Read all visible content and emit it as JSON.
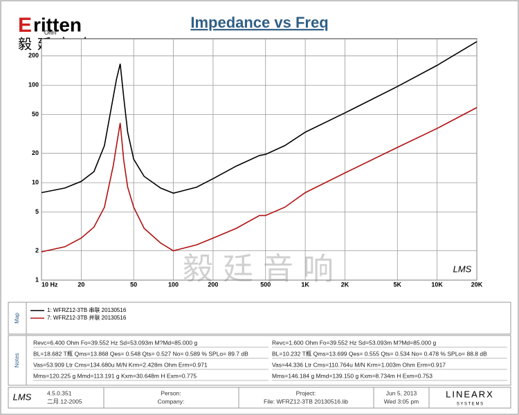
{
  "header": {
    "logo_letter": "E",
    "logo_rest": "ritten",
    "logo_cn": "毅廷音响",
    "watermark": "毅廷音响",
    "lms_logo": "LMS"
  },
  "chart_data": {
    "type": "line",
    "title": "Impedance vs Freq",
    "y_unit": "Ohm",
    "x": [
      10,
      15,
      20,
      25,
      30,
      35,
      37,
      39.5,
      42,
      45,
      50,
      60,
      80,
      100,
      150,
      200,
      300,
      450,
      500,
      700,
      1000,
      2000,
      5000,
      10000,
      20000
    ],
    "series": [
      {
        "name": "1: WFRZ12-3TB 串联 20130516",
        "color": "#000000",
        "values": [
          7.9,
          8.8,
          10.3,
          13,
          24,
          76,
          115,
          166,
          75,
          33,
          17.4,
          11.6,
          8.8,
          7.8,
          9,
          11,
          14.8,
          19,
          19.5,
          24,
          33,
          52,
          97,
          160,
          280
        ]
      },
      {
        "name": "7: WFRZ12-3TB 并联 20130516",
        "color": "#b01010",
        "values": [
          1.95,
          2.2,
          2.7,
          3.5,
          5.6,
          15,
          24,
          41,
          17,
          9,
          5.6,
          3.4,
          2.4,
          2.0,
          2.3,
          2.7,
          3.4,
          4.6,
          4.6,
          5.6,
          7.9,
          12.6,
          23,
          36,
          59
        ]
      }
    ],
    "xscale": "log",
    "yscale": "log",
    "xlim": [
      10,
      20000
    ],
    "ylim": [
      1,
      300
    ],
    "xticks": [
      {
        "value": 10,
        "label": "10 Hz"
      },
      20,
      50,
      100,
      200,
      500,
      {
        "value": 1000,
        "label": "1K"
      },
      {
        "value": 2000,
        "label": "2K"
      },
      {
        "value": 5000,
        "label": "5K"
      },
      {
        "value": 10000,
        "label": "10K"
      },
      {
        "value": 20000,
        "label": "20K"
      }
    ],
    "yticks": [
      1,
      2,
      5,
      10,
      20,
      50,
      100,
      200
    ],
    "grid": true
  },
  "panels": {
    "map": "Map",
    "notes": "Notes"
  },
  "notes": {
    "left": [
      "Revc=6.400 Ohm  Fo=39.552 Hz  Sd=53.093m M?Md=85.000 g",
      "BL=18.682 T瓶  Qms=13.868  Qes= 0.548  Qts= 0.527  No= 0.589 %  SPLo= 89.7 dB",
      "Vas=53.909 Ltr  Cms=134.680u M/N  Krm=2.428m Ohm  Erm=0.971",
      "Mms=120.225 g  Mmd=113.191 g  Kxm=30.648m H  Exm=0.775"
    ],
    "right": [
      "Revc=1.600 Ohm  Fo=39.552 Hz  Sd=53.093m M?Md=85.000 g",
      "BL=10.232 T瓶  Qms=13.699  Qes= 0.555  Qts= 0.534  No= 0.478 %  SPLo= 88.8 dB",
      "Vas=44.336 Ltr  Cms=110.764u M/N  Krm=1.003m Ohm  Erm=0.917",
      "Mms=146.184 g  Mmd=139.150 g  Kxm=8.734m H  Exm=0.753"
    ]
  },
  "footer": {
    "version": "4.5.0.351",
    "date_code": "二月.12-2005",
    "person": "Person:",
    "company": "Company:",
    "project": "Project:",
    "file": "File: WFRZ12-3TB 20130516.lib",
    "date": "Jun  5, 2013",
    "time": "Wed  3:05 pm",
    "brand": "LINEARX",
    "brand_sub": "S Y S T E M S"
  }
}
